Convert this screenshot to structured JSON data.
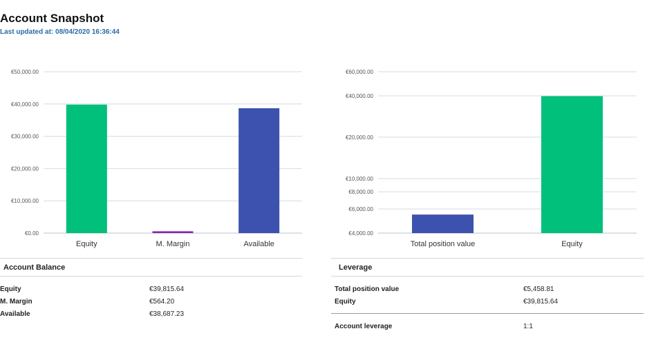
{
  "header": {
    "title": "Account Snapshot",
    "last_updated": "Last updated at: 08/04/2020 16:36:44"
  },
  "colors": {
    "green": "#00c07c",
    "blue": "#3d52ae",
    "purple": "#8e24aa"
  },
  "chart_data": [
    {
      "type": "bar",
      "title": "",
      "categories": [
        "Equity",
        "M. Margin",
        "Available"
      ],
      "values": [
        39815.64,
        564.2,
        38687.23
      ],
      "colors": [
        "#00c07c",
        "#8e24aa",
        "#3d52ae"
      ],
      "ylim": [
        0,
        50000
      ],
      "yticks": [
        0,
        10000,
        20000,
        30000,
        40000,
        50000
      ],
      "ytick_labels": [
        "€0.00",
        "€10,000.00",
        "€20,000.00",
        "€30,000.00",
        "€40,000.00",
        "€50,000.00"
      ],
      "scale": "linear",
      "grid": true
    },
    {
      "type": "bar",
      "title": "",
      "categories": [
        "Total position value",
        "Equity"
      ],
      "values": [
        5458.81,
        39815.64
      ],
      "colors": [
        "#3d52ae",
        "#00c07c"
      ],
      "ylim": [
        4000,
        60000
      ],
      "yticks": [
        4000,
        6000,
        8000,
        10000,
        20000,
        40000,
        60000
      ],
      "ytick_labels": [
        "€4,000.00",
        "€6,000.00",
        "€8,000.00",
        "€10,000.00",
        "€20,000.00",
        "€40,000.00",
        "€60,000.00"
      ],
      "scale": "log",
      "grid": true
    }
  ],
  "balance": {
    "heading": "Account Balance",
    "rows": [
      {
        "label": "Equity",
        "value": "€39,815.64"
      },
      {
        "label": "M. Margin",
        "value": "€564.20"
      },
      {
        "label": "Available",
        "value": "€38,687.23"
      }
    ]
  },
  "leverage": {
    "heading": "Leverage",
    "rows": [
      {
        "label": "Total position value",
        "value": "€5,458.81"
      },
      {
        "label": "Equity",
        "value": "€39,815.64"
      }
    ],
    "account_leverage": {
      "label": "Account leverage",
      "value": "1:1"
    }
  }
}
